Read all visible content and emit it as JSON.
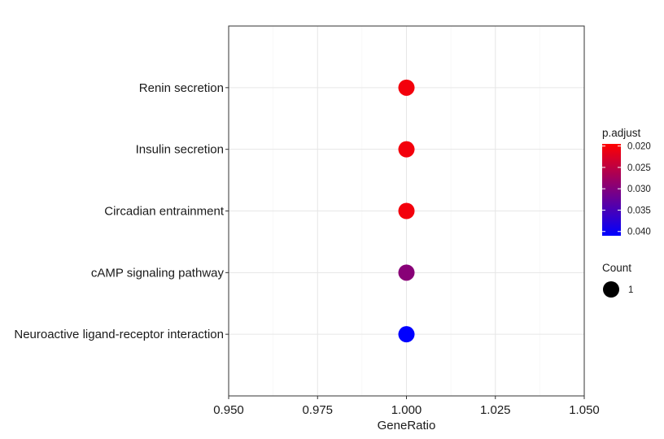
{
  "chart_data": {
    "type": "scatter",
    "xlabel": "GeneRatio",
    "xlim": [
      0.95,
      1.05
    ],
    "x_ticks": [
      "0.950",
      "0.975",
      "1.000",
      "1.025",
      "1.050"
    ],
    "x_tick_values": [
      0.95,
      0.975,
      1.0,
      1.025,
      1.05
    ],
    "grid": true,
    "categories": [
      "Neuroactive ligand-receptor interaction",
      "cAMP signaling pathway",
      "Circadian entrainment",
      "Insulin secretion",
      "Renin secretion"
    ],
    "points": [
      {
        "category": "Renin secretion",
        "x": 1.0,
        "p_adjust": 0.0205,
        "count": 1
      },
      {
        "category": "Insulin secretion",
        "x": 1.0,
        "p_adjust": 0.0205,
        "count": 1
      },
      {
        "category": "Circadian entrainment",
        "x": 1.0,
        "p_adjust": 0.0205,
        "count": 1
      },
      {
        "category": "cAMP signaling pathway",
        "x": 1.0,
        "p_adjust": 0.0295,
        "count": 1
      },
      {
        "category": "Neuroactive ligand-receptor interaction",
        "x": 1.0,
        "p_adjust": 0.041,
        "count": 1
      }
    ],
    "color_legend": {
      "title": "p.adjust",
      "ticks": [
        "0.020",
        "0.025",
        "0.030",
        "0.035",
        "0.040"
      ],
      "tick_values": [
        0.02,
        0.025,
        0.03,
        0.035,
        0.04
      ],
      "range": [
        0.0195,
        0.041
      ],
      "low_color": "#FF0000",
      "high_color": "#0000FF"
    },
    "size_legend": {
      "title": "Count",
      "values": [
        "1"
      ]
    },
    "legend_position": "right"
  }
}
